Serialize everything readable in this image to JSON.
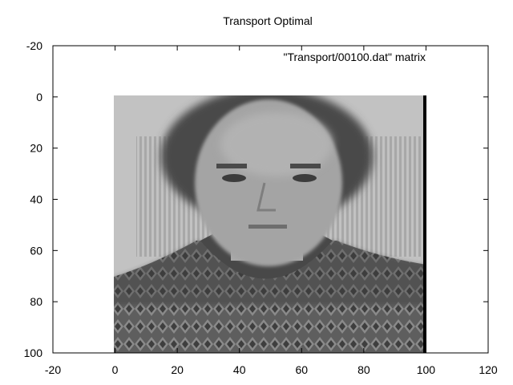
{
  "chart_data": {
    "type": "heatmap",
    "title": "Transport Optimal",
    "legend": "\"Transport/00100.dat\" matrix",
    "legend_position": "top-right",
    "xlim": [
      -20,
      120
    ],
    "ylim": [
      -20,
      100
    ],
    "y_inverted": true,
    "x_ticks": [
      "-20",
      "0",
      "20",
      "40",
      "60",
      "80",
      "100",
      "120"
    ],
    "y_ticks": [
      "-20",
      "0",
      "20",
      "40",
      "60",
      "80",
      "100"
    ],
    "grid": false,
    "colormap": "grayscale",
    "matrix_x_range": [
      0,
      100
    ],
    "matrix_y_range": [
      0,
      100
    ],
    "content": "grayscale photographic portrait (head and shoulders) with an edge column of black at x = 99..100"
  }
}
